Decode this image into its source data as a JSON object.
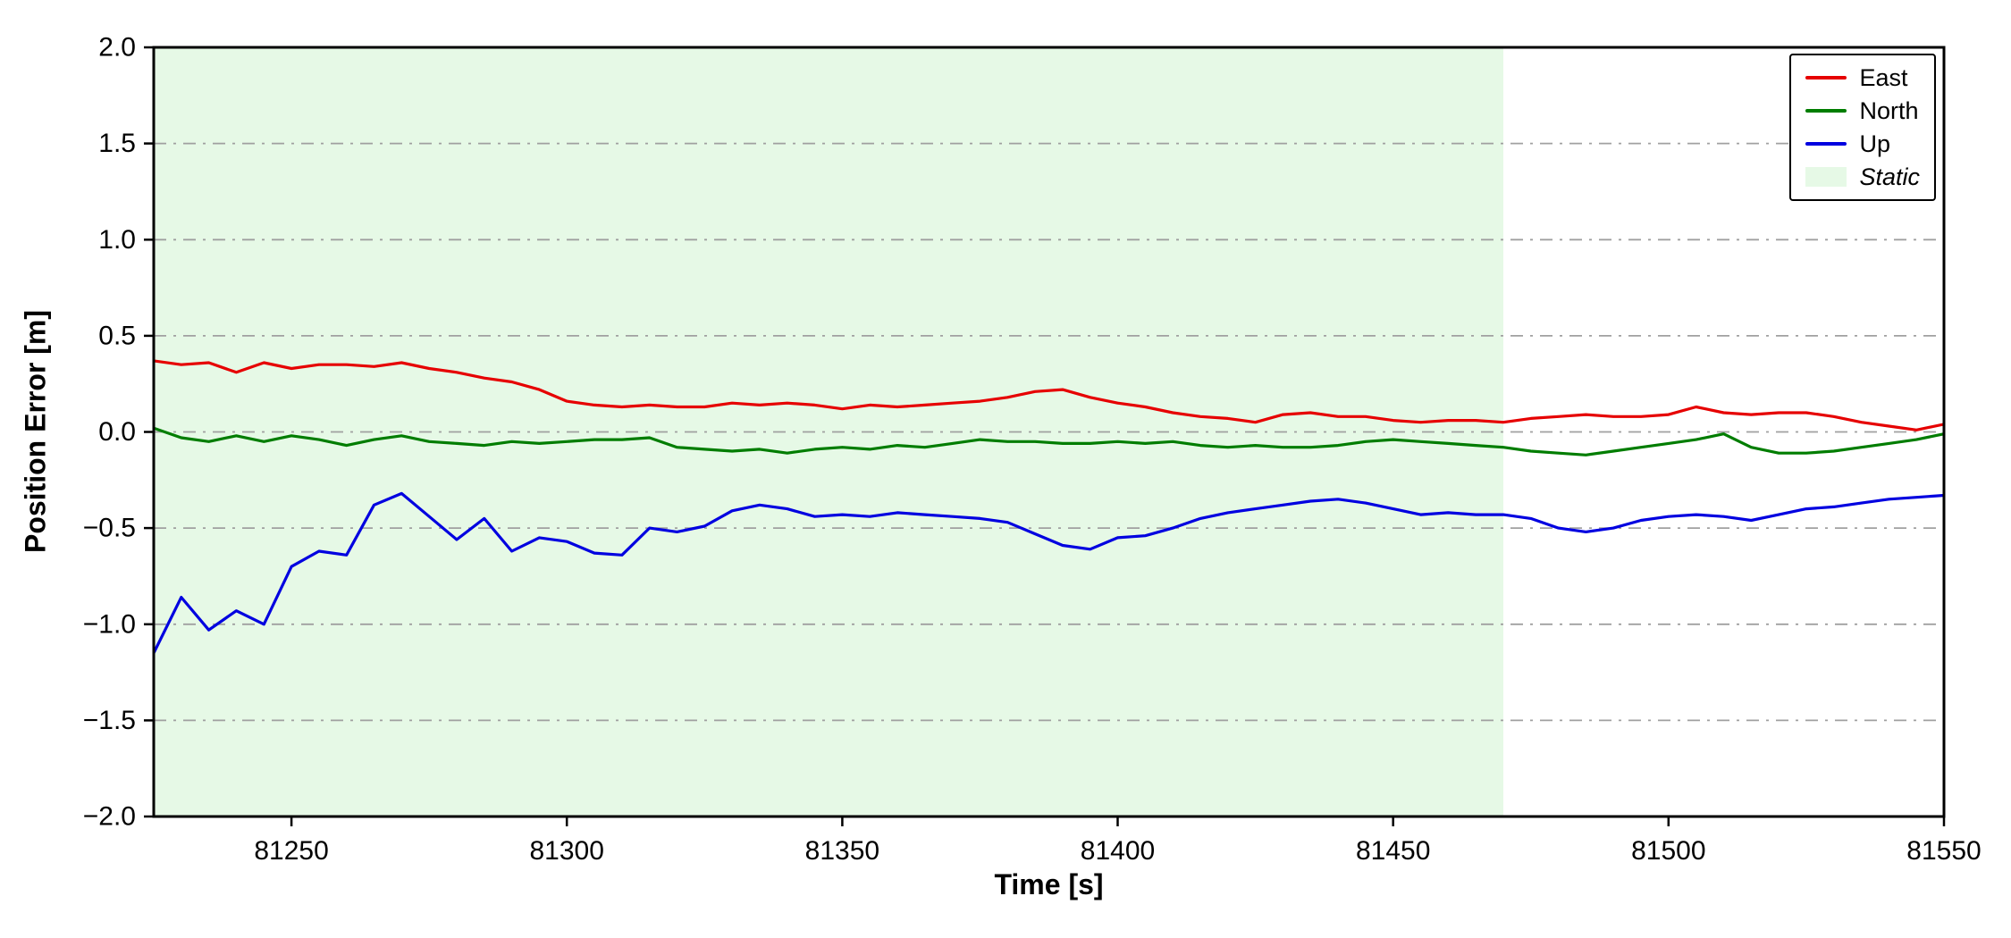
{
  "chart_data": {
    "type": "line",
    "title": "",
    "xlabel": "Time [s]",
    "ylabel": "Position Error [m]",
    "xlim": [
      81225,
      81550
    ],
    "ylim": [
      -2.0,
      2.0
    ],
    "xticks": [
      81250,
      81300,
      81350,
      81400,
      81450,
      81500,
      81550
    ],
    "yticks": [
      -2.0,
      -1.5,
      -1.0,
      -0.5,
      0.0,
      0.5,
      1.0,
      1.5,
      2.0
    ],
    "grid": "horizontal dash-dot",
    "grid_color": "#a0a0a0",
    "legend_position": "upper right",
    "x": [
      81225,
      81230,
      81235,
      81240,
      81245,
      81250,
      81255,
      81260,
      81265,
      81270,
      81275,
      81280,
      81285,
      81290,
      81295,
      81300,
      81305,
      81310,
      81315,
      81320,
      81325,
      81330,
      81335,
      81340,
      81345,
      81350,
      81355,
      81360,
      81365,
      81370,
      81375,
      81380,
      81385,
      81390,
      81395,
      81400,
      81405,
      81410,
      81415,
      81420,
      81425,
      81430,
      81435,
      81440,
      81445,
      81450,
      81455,
      81460,
      81465,
      81470,
      81475,
      81480,
      81485,
      81490,
      81495,
      81500,
      81505,
      81510,
      81515,
      81520,
      81525,
      81530,
      81535,
      81540,
      81545,
      81550
    ],
    "series": [
      {
        "name": "East",
        "color": "#e60000",
        "values": [
          0.37,
          0.35,
          0.36,
          0.31,
          0.36,
          0.33,
          0.35,
          0.35,
          0.34,
          0.36,
          0.33,
          0.31,
          0.28,
          0.26,
          0.22,
          0.16,
          0.14,
          0.13,
          0.14,
          0.13,
          0.13,
          0.15,
          0.14,
          0.15,
          0.14,
          0.12,
          0.14,
          0.13,
          0.14,
          0.15,
          0.16,
          0.18,
          0.21,
          0.22,
          0.18,
          0.15,
          0.13,
          0.1,
          0.08,
          0.07,
          0.05,
          0.09,
          0.1,
          0.08,
          0.08,
          0.06,
          0.05,
          0.06,
          0.06,
          0.05,
          0.07,
          0.08,
          0.09,
          0.08,
          0.08,
          0.09,
          0.13,
          0.1,
          0.09,
          0.1,
          0.1,
          0.08,
          0.05,
          0.03,
          0.01,
          0.04
        ]
      },
      {
        "name": "North",
        "color": "#007d00",
        "values": [
          0.02,
          -0.03,
          -0.05,
          -0.02,
          -0.05,
          -0.02,
          -0.04,
          -0.07,
          -0.04,
          -0.02,
          -0.05,
          -0.06,
          -0.07,
          -0.05,
          -0.06,
          -0.05,
          -0.04,
          -0.04,
          -0.03,
          -0.08,
          -0.09,
          -0.1,
          -0.09,
          -0.11,
          -0.09,
          -0.08,
          -0.09,
          -0.07,
          -0.08,
          -0.06,
          -0.04,
          -0.05,
          -0.05,
          -0.06,
          -0.06,
          -0.05,
          -0.06,
          -0.05,
          -0.07,
          -0.08,
          -0.07,
          -0.08,
          -0.08,
          -0.07,
          -0.05,
          -0.04,
          -0.05,
          -0.06,
          -0.07,
          -0.08,
          -0.1,
          -0.11,
          -0.12,
          -0.1,
          -0.08,
          -0.06,
          -0.04,
          -0.01,
          -0.08,
          -0.11,
          -0.11,
          -0.1,
          -0.08,
          -0.06,
          -0.04,
          -0.01
        ]
      },
      {
        "name": "Up",
        "color": "#0000e0",
        "values": [
          -1.15,
          -0.86,
          -1.03,
          -0.93,
          -1.0,
          -0.7,
          -0.62,
          -0.64,
          -0.38,
          -0.32,
          -0.44,
          -0.56,
          -0.45,
          -0.62,
          -0.55,
          -0.57,
          -0.63,
          -0.64,
          -0.5,
          -0.52,
          -0.49,
          -0.41,
          -0.38,
          -0.4,
          -0.44,
          -0.43,
          -0.44,
          -0.42,
          -0.43,
          -0.44,
          -0.45,
          -0.47,
          -0.53,
          -0.59,
          -0.61,
          -0.55,
          -0.54,
          -0.5,
          -0.45,
          -0.42,
          -0.4,
          -0.38,
          -0.36,
          -0.35,
          -0.37,
          -0.4,
          -0.43,
          -0.42,
          -0.43,
          -0.43,
          -0.45,
          -0.5,
          -0.52,
          -0.5,
          -0.46,
          -0.44,
          -0.43,
          -0.44,
          -0.46,
          -0.43,
          -0.4,
          -0.39,
          -0.37,
          -0.35,
          -0.34,
          -0.33
        ]
      }
    ],
    "static_region": {
      "label": "Static",
      "x_start": 81225,
      "x_end": 81470,
      "color": "#e6f9e6"
    }
  }
}
